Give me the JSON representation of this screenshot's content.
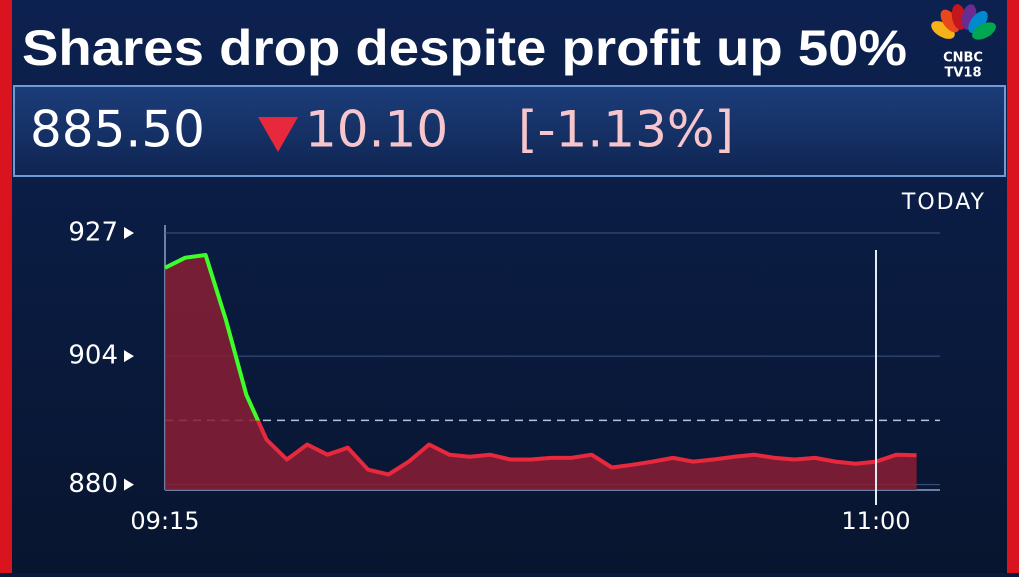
{
  "header": {
    "title": "Shares drop despite profit up 50%",
    "price": "885.50",
    "change": "10.10",
    "change_pct": "[-1.13%]",
    "logo": [
      "CNBC",
      "TV18"
    ]
  },
  "chart_data": {
    "type": "line",
    "period": "TODAY",
    "categories": [
      "09:15",
      null,
      null,
      null,
      null,
      null,
      null,
      null,
      null,
      null,
      null,
      null,
      null,
      null,
      null,
      null,
      null,
      null,
      null,
      null,
      null,
      null,
      null,
      null,
      null,
      null,
      null,
      null,
      null,
      null,
      null,
      null,
      null,
      null,
      null,
      "11:00",
      null,
      null
    ],
    "values": [
      920.5,
      922.4,
      922.9,
      910.8,
      896.8,
      888.4,
      884.7,
      887.5,
      885.6,
      886.9,
      882.8,
      881.9,
      884.3,
      887.5,
      885.6,
      885.2,
      885.6,
      884.7,
      884.7,
      885.0,
      885.0,
      885.6,
      883.2,
      883.7,
      884.3,
      885.0,
      884.3,
      884.7,
      885.2,
      885.6,
      885.0,
      884.7,
      885.0,
      884.3,
      883.9,
      884.3,
      885.6,
      885.5
    ],
    "reference_line": 892,
    "up_color": "#3cff2a",
    "down_color": "#e8283c",
    "area_color": "#8a1f35",
    "ylim": [
      879,
      928.5
    ],
    "yticks": [
      880,
      904,
      927
    ],
    "grid": true,
    "x_marker": 35
  }
}
